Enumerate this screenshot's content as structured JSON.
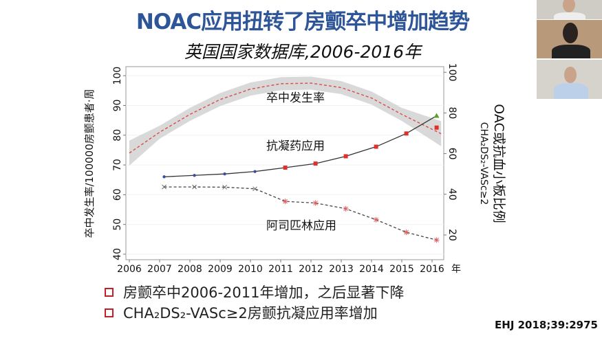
{
  "title": "NOAC应用扭转了房颤卒中增加趋势",
  "subtitle": "英国国家数据库,2006-2016年",
  "bullets": [
    "房颤卒中2006-2011年增加，之后显著下降",
    "CHA₂DS₂-VASc≥2房颤抗凝应用率增加"
  ],
  "reference": "EHJ 2018;39:2975",
  "colors": {
    "title": "#2e5597",
    "bullet": "#c0202a",
    "stroke_curve": "#d9534f",
    "band": "#cfcfcf",
    "early_marker": "#3a4fa0",
    "late_marker": "#e0302a",
    "green_marker": "#5aa02c"
  },
  "chart_data": {
    "type": "line",
    "x": [
      2006,
      2007,
      2008,
      2009,
      2010,
      2011,
      2012,
      2013,
      2014,
      2015,
      2016
    ],
    "xlabel_suffix": "年",
    "xticks": [
      "2006",
      "2007",
      "2008",
      "2009",
      "2010",
      "2011",
      "2012",
      "2013",
      "2014",
      "2015",
      "2016"
    ],
    "ylabel_left": "卒中发生率/100000房颤患者·周",
    "ylim_left": [
      40,
      100
    ],
    "yticks_left": [
      40,
      50,
      60,
      70,
      80,
      90,
      100
    ],
    "ylabel_right_line1": "CHA₂DS₂-VASc≥2",
    "ylabel_right_line2": "OAC或抗血小板比例",
    "ylim_right": [
      10,
      100
    ],
    "yticks_right": [
      20,
      40,
      60,
      80,
      100
    ],
    "series": [
      {
        "name": "卒中发生率",
        "axis": "left",
        "style": "dashed-with-band",
        "x": [
          2006,
          2007,
          2008,
          2009,
          2010,
          2011,
          2012,
          2013,
          2014,
          2015,
          2016.3
        ],
        "values": [
          74,
          81,
          87,
          92,
          95.5,
          97.3,
          97.5,
          96,
          92.5,
          87,
          80.5
        ]
      },
      {
        "name": "抗凝药应用",
        "axis": "right",
        "style": "solid",
        "x": [
          2007,
          2008,
          2009,
          2010,
          2011,
          2012,
          2013,
          2014,
          2015,
          2016
        ],
        "values": [
          48.6,
          49.3,
          50,
          51.2,
          53.1,
          55.1,
          58.7,
          63.4,
          69.9,
          78.6
        ],
        "extra_point": {
          "x": 2016,
          "value": 72.8
        }
      },
      {
        "name": "阿司匹林应用",
        "axis": "right",
        "style": "dashed",
        "x": [
          2007,
          2008,
          2009,
          2010,
          2011,
          2012,
          2013,
          2014,
          2015,
          2016
        ],
        "values": [
          43.6,
          43.6,
          43.5,
          42.7,
          36.5,
          35.7,
          32.9,
          27.5,
          21.3,
          17.5
        ]
      }
    ]
  }
}
